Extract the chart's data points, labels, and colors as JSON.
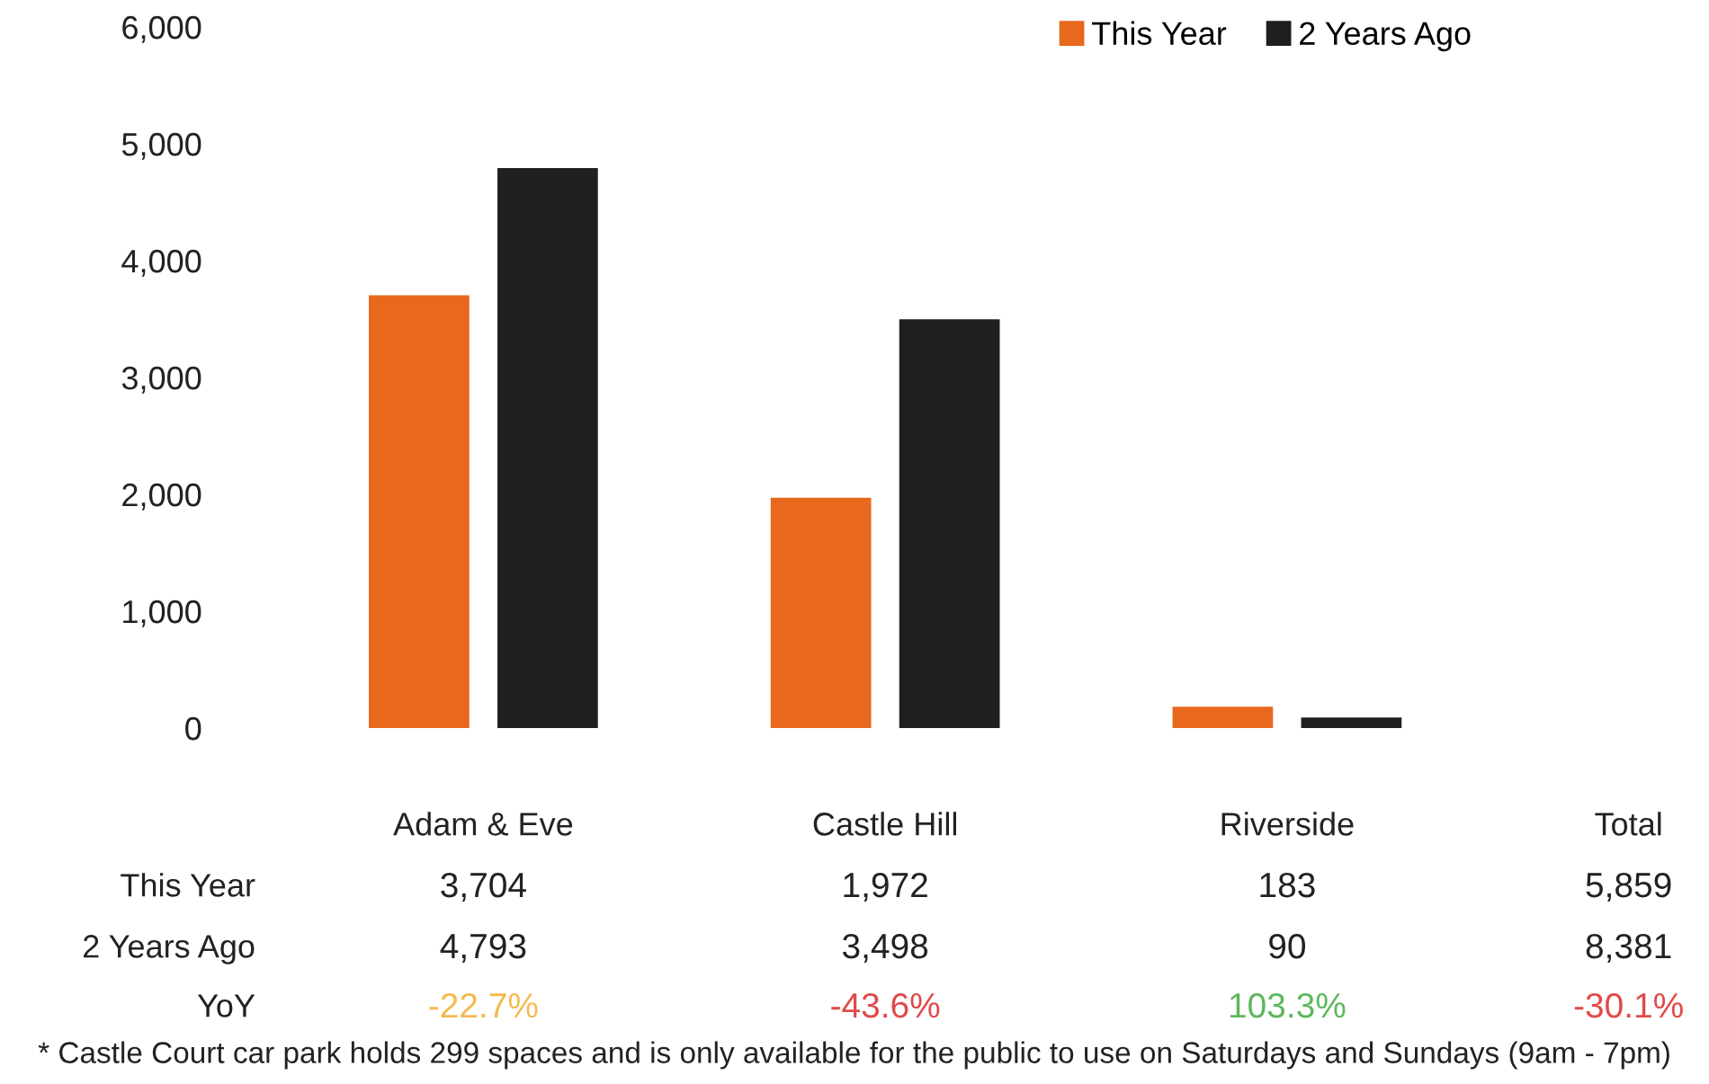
{
  "chart_data": {
    "type": "bar",
    "categories": [
      "Adam & Eve",
      "Castle Hill",
      "Riverside"
    ],
    "series": [
      {
        "name": "This Year",
        "color": "#e8681e",
        "values": [
          3704,
          1972,
          183
        ]
      },
      {
        "name": "2 Years Ago",
        "color": "#1f1f1f",
        "values": [
          4793,
          3498,
          90
        ]
      }
    ],
    "value_labels": [
      [
        "3,704",
        "1,972",
        "183"
      ],
      [
        "4,793",
        "3,498",
        "90"
      ]
    ],
    "ylim": [
      0,
      6000
    ],
    "yticks": [
      {
        "value": 0,
        "label": "0"
      },
      {
        "value": 1000,
        "label": "1,000"
      },
      {
        "value": 2000,
        "label": "2,000"
      },
      {
        "value": 3000,
        "label": "3,000"
      },
      {
        "value": 4000,
        "label": "4,000"
      },
      {
        "value": 5000,
        "label": "5,000"
      },
      {
        "value": 6000,
        "label": "6,000"
      }
    ],
    "grid": false,
    "legend": "top right",
    "annotations": [
      "Total",
      "5,859",
      "8,381",
      "YoY",
      "-22.7%",
      "-43.6%",
      "103.3%",
      "-30.1%",
      "* Castle Court car park holds 299 spaces and is only available for the public to use on Saturdays and Sundays (9am - 7pm)"
    ]
  }
}
